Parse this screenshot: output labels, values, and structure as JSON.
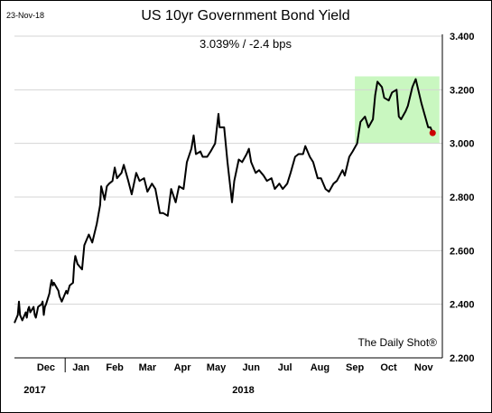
{
  "date_stamp": "23-Nov-18",
  "source": "The Daily Shot®",
  "chart_data": {
    "type": "line",
    "title": "US 10yr Government Bond Yield",
    "subtitle": "3.039%  /  -2.4 bps",
    "ylim": [
      2.2,
      3.4
    ],
    "yticks": [
      "3.400",
      "3.200",
      "3.000",
      "2.800",
      "2.600",
      "2.400",
      "2.200"
    ],
    "ytick_values": [
      3.4,
      3.2,
      3.0,
      2.8,
      2.6,
      2.4,
      2.2
    ],
    "xlim": [
      "2017-11-17",
      "2018-11-30"
    ],
    "month_labels": [
      {
        "label": "Dec",
        "date": "2017-12-15"
      },
      {
        "label": "Jan",
        "date": "2018-01-15"
      },
      {
        "label": "Feb",
        "date": "2018-02-14"
      },
      {
        "label": "Mar",
        "date": "2018-03-15"
      },
      {
        "label": "Apr",
        "date": "2018-04-15"
      },
      {
        "label": "May",
        "date": "2018-05-15"
      },
      {
        "label": "Jun",
        "date": "2018-06-15"
      },
      {
        "label": "Jul",
        "date": "2018-07-15"
      },
      {
        "label": "Aug",
        "date": "2018-08-15"
      },
      {
        "label": "Sep",
        "date": "2018-09-15"
      },
      {
        "label": "Oct",
        "date": "2018-10-15"
      },
      {
        "label": "Nov",
        "date": "2018-11-15"
      }
    ],
    "year_labels": [
      {
        "label": "2017",
        "date": "2017-12-05"
      },
      {
        "label": "2018",
        "date": "2018-06-08"
      }
    ],
    "year_divider_date": "2018-01-01",
    "highlight": {
      "x0": "2018-09-15",
      "x1": "2018-11-29",
      "y0": 3.0,
      "y1": 3.25,
      "color": "#c9f7c0"
    },
    "line_color": "#000000",
    "last_point_color": "#cc0000",
    "series": [
      {
        "x": [
          "2017-11-17",
          "2017-11-20",
          "2017-11-21",
          "2017-11-22",
          "2017-11-24",
          "2017-11-27",
          "2017-11-28",
          "2017-11-29",
          "2017-11-30",
          "2017-12-01",
          "2017-12-04",
          "2017-12-05",
          "2017-12-06",
          "2017-12-07",
          "2017-12-08",
          "2017-12-11",
          "2017-12-12",
          "2017-12-13",
          "2017-12-14",
          "2017-12-15",
          "2017-12-18",
          "2017-12-19",
          "2017-12-20",
          "2017-12-21",
          "2017-12-22",
          "2017-12-26",
          "2017-12-27",
          "2017-12-28",
          "2017-12-29",
          "2018-01-02",
          "2018-01-03",
          "2018-01-05",
          "2018-01-08",
          "2018-01-09",
          "2018-01-10",
          "2018-01-12",
          "2018-01-16",
          "2018-01-18",
          "2018-01-22",
          "2018-01-25",
          "2018-01-29",
          "2018-02-01",
          "2018-02-02",
          "2018-02-05",
          "2018-02-07",
          "2018-02-09",
          "2018-02-12",
          "2018-02-14",
          "2018-02-16",
          "2018-02-20",
          "2018-02-22",
          "2018-02-26",
          "2018-03-01",
          "2018-03-05",
          "2018-03-08",
          "2018-03-12",
          "2018-03-15",
          "2018-03-19",
          "2018-03-22",
          "2018-03-26",
          "2018-03-29",
          "2018-04-02",
          "2018-04-05",
          "2018-04-09",
          "2018-04-12",
          "2018-04-16",
          "2018-04-19",
          "2018-04-23",
          "2018-04-25",
          "2018-04-27",
          "2018-05-01",
          "2018-05-03",
          "2018-05-07",
          "2018-05-10",
          "2018-05-14",
          "2018-05-17",
          "2018-05-18",
          "2018-05-22",
          "2018-05-25",
          "2018-05-29",
          "2018-05-31",
          "2018-06-04",
          "2018-06-07",
          "2018-06-11",
          "2018-06-13",
          "2018-06-15",
          "2018-06-19",
          "2018-06-22",
          "2018-06-26",
          "2018-06-29",
          "2018-07-03",
          "2018-07-06",
          "2018-07-10",
          "2018-07-13",
          "2018-07-17",
          "2018-07-20",
          "2018-07-24",
          "2018-07-27",
          "2018-07-31",
          "2018-08-02",
          "2018-08-06",
          "2018-08-09",
          "2018-08-13",
          "2018-08-16",
          "2018-08-20",
          "2018-08-23",
          "2018-08-27",
          "2018-08-30",
          "2018-09-04",
          "2018-09-06",
          "2018-09-10",
          "2018-09-13",
          "2018-09-17",
          "2018-09-20",
          "2018-09-24",
          "2018-09-27",
          "2018-10-01",
          "2018-10-03",
          "2018-10-05",
          "2018-10-09",
          "2018-10-11",
          "2018-10-15",
          "2018-10-18",
          "2018-10-22",
          "2018-10-24",
          "2018-10-26",
          "2018-10-30",
          "2018-11-01",
          "2018-11-05",
          "2018-11-08",
          "2018-11-13",
          "2018-11-15",
          "2018-11-19",
          "2018-11-21",
          "2018-11-23"
        ],
        "y": [
          2.33,
          2.36,
          2.41,
          2.36,
          2.34,
          2.37,
          2.35,
          2.38,
          2.39,
          2.37,
          2.39,
          2.36,
          2.35,
          2.37,
          2.39,
          2.4,
          2.41,
          2.36,
          2.39,
          2.4,
          2.44,
          2.47,
          2.49,
          2.47,
          2.48,
          2.45,
          2.43,
          2.42,
          2.41,
          2.45,
          2.44,
          2.47,
          2.48,
          2.55,
          2.58,
          2.55,
          2.53,
          2.62,
          2.66,
          2.63,
          2.7,
          2.77,
          2.84,
          2.79,
          2.84,
          2.85,
          2.86,
          2.91,
          2.87,
          2.89,
          2.92,
          2.86,
          2.81,
          2.89,
          2.86,
          2.87,
          2.82,
          2.85,
          2.83,
          2.74,
          2.74,
          2.73,
          2.83,
          2.78,
          2.84,
          2.83,
          2.93,
          2.98,
          3.03,
          2.96,
          2.97,
          2.95,
          2.95,
          2.97,
          3.0,
          3.11,
          3.06,
          3.06,
          2.93,
          2.78,
          2.86,
          2.94,
          2.93,
          2.96,
          2.98,
          2.93,
          2.89,
          2.9,
          2.88,
          2.86,
          2.87,
          2.83,
          2.85,
          2.83,
          2.85,
          2.89,
          2.95,
          2.96,
          2.96,
          2.99,
          2.95,
          2.93,
          2.87,
          2.87,
          2.83,
          2.82,
          2.85,
          2.86,
          2.9,
          2.88,
          2.95,
          2.97,
          3.0,
          3.08,
          3.1,
          3.06,
          3.09,
          3.18,
          3.23,
          3.21,
          3.17,
          3.16,
          3.19,
          3.2,
          3.1,
          3.09,
          3.12,
          3.14,
          3.21,
          3.24,
          3.15,
          3.12,
          3.06,
          3.06,
          3.039
        ]
      }
    ]
  }
}
